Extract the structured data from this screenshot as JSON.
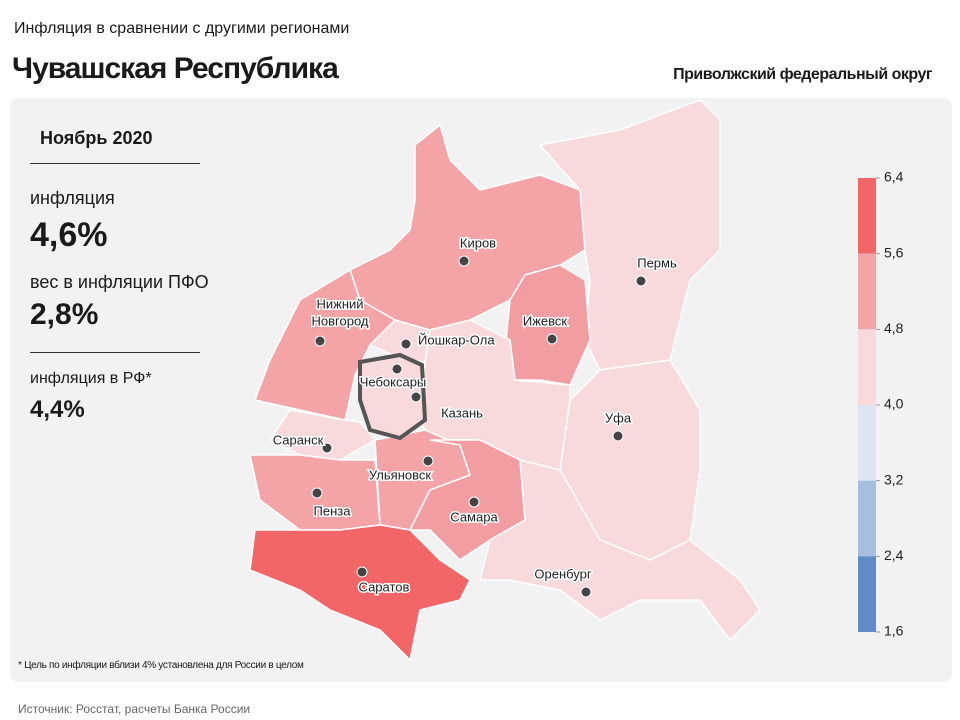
{
  "header": {
    "subtitle": "Инфляция в сравнении с другими регионами",
    "title": "Чувашская Республика",
    "district": "Приволжский федеральный округ"
  },
  "panel": {
    "period": "Ноябрь 2020",
    "stats": [
      {
        "label": "инфляция",
        "value": "4,6%"
      },
      {
        "label": "вес в инфляции ПФО",
        "value": "2,8%"
      },
      {
        "label": "инфляция в РФ*",
        "value": "4,4%"
      }
    ]
  },
  "cities": [
    {
      "lines": [
        "Киров"
      ]
    },
    {
      "lines": [
        "Пермь"
      ]
    },
    {
      "lines": [
        "Ижевск"
      ]
    },
    {
      "lines": [
        "Нижний",
        "Новгород"
      ]
    },
    {
      "lines": [
        "Йошкар-Ола"
      ]
    },
    {
      "lines": [
        "Чебоксары"
      ]
    },
    {
      "lines": [
        "Казань"
      ]
    },
    {
      "lines": [
        "Уфа"
      ]
    },
    {
      "lines": [
        "Саранск"
      ]
    },
    {
      "lines": [
        "Ульяновск"
      ]
    },
    {
      "lines": [
        "Пенза"
      ]
    },
    {
      "lines": [
        "Самара"
      ]
    },
    {
      "lines": [
        "Оренбург"
      ]
    },
    {
      "lines": [
        "Саратов"
      ]
    }
  ],
  "legend": {
    "ticks": [
      {
        "value": 6.4,
        "label": "6,4"
      },
      {
        "value": 5.6,
        "label": "5,6"
      },
      {
        "value": 4.8,
        "label": "4,8"
      },
      {
        "value": 4.0,
        "label": "4,0"
      },
      {
        "value": 3.2,
        "label": "3,2"
      },
      {
        "value": 2.4,
        "label": "2,4"
      },
      {
        "value": 1.6,
        "label": "1,6"
      }
    ],
    "colors": [
      "#f36668",
      "#f4a3a7",
      "#f8d9dc",
      "#dde4f2",
      "#a6bedf",
      "#5f8bc6"
    ]
  },
  "footnote": "* Цель по инфляции вблизи 4% установлена для России в целом",
  "source": "Источник: Росстат, расчеты Банка России"
}
